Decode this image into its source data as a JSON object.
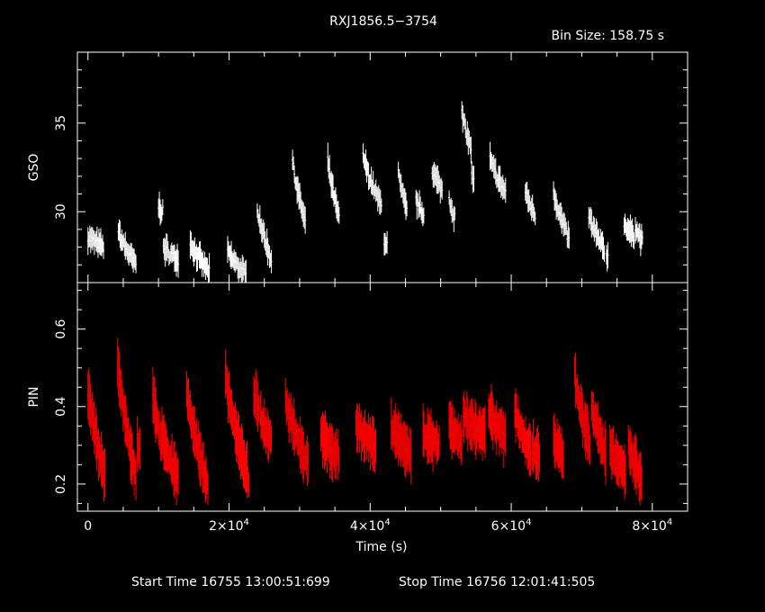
{
  "title": "RXJ1856.5−3754",
  "bin_size": "Bin Size: 158.75 s",
  "footer": {
    "start": "Start Time 16755 13:00:51:699",
    "stop": "Stop Time 16756 12:01:41:505"
  },
  "colors": {
    "background": "#000000",
    "axes": "#ffffff",
    "gso": "#ffffff",
    "pin": "#ff0000"
  },
  "chart_data": [
    {
      "type": "line",
      "panel": "top",
      "ylabel": "GSO",
      "xlim": [
        -1500,
        85000
      ],
      "ylim": [
        26,
        39
      ],
      "yticks": [
        30,
        35
      ],
      "xticks": [
        0,
        20000,
        40000,
        60000,
        80000
      ],
      "xtick_labels": [
        "0",
        "2×10⁴",
        "4×10⁴",
        "6×10⁴",
        "8×10⁴"
      ],
      "segments": [
        {
          "start": 0,
          "end": 2200,
          "y0": 28.6,
          "y1": 28.0
        },
        {
          "start": 4300,
          "end": 6800,
          "y0": 28.9,
          "y1": 27.0
        },
        {
          "start": 10000,
          "end": 10600,
          "y0": 30.3,
          "y1": 30.0
        },
        {
          "start": 10700,
          "end": 12800,
          "y0": 28.0,
          "y1": 27.3
        },
        {
          "start": 14500,
          "end": 17200,
          "y0": 28.3,
          "y1": 26.6
        },
        {
          "start": 19800,
          "end": 22400,
          "y0": 27.8,
          "y1": 26.4
        },
        {
          "start": 24000,
          "end": 26000,
          "y0": 30.3,
          "y1": 27.3
        },
        {
          "start": 29000,
          "end": 30800,
          "y0": 32.9,
          "y1": 29.4
        },
        {
          "start": 34000,
          "end": 35600,
          "y0": 32.9,
          "y1": 29.6
        },
        {
          "start": 39000,
          "end": 41600,
          "y0": 33.2,
          "y1": 30.3
        },
        {
          "start": 42000,
          "end": 42400,
          "y0": 28.4,
          "y1": 28.2
        },
        {
          "start": 44000,
          "end": 45200,
          "y0": 32.2,
          "y1": 30.0
        },
        {
          "start": 46500,
          "end": 47600,
          "y0": 30.7,
          "y1": 29.8
        },
        {
          "start": 48800,
          "end": 50200,
          "y0": 32.4,
          "y1": 31.2
        },
        {
          "start": 51200,
          "end": 52000,
          "y0": 30.8,
          "y1": 29.7
        },
        {
          "start": 53000,
          "end": 54300,
          "y0": 35.6,
          "y1": 33.6
        },
        {
          "start": 54400,
          "end": 54700,
          "y0": 32.0,
          "y1": 31.7
        },
        {
          "start": 57000,
          "end": 58200,
          "y0": 33.0,
          "y1": 31.8
        },
        {
          "start": 58300,
          "end": 59200,
          "y0": 31.8,
          "y1": 31.1
        },
        {
          "start": 62000,
          "end": 63400,
          "y0": 31.2,
          "y1": 29.8
        },
        {
          "start": 66000,
          "end": 68200,
          "y0": 31.2,
          "y1": 28.4
        },
        {
          "start": 71000,
          "end": 73200,
          "y0": 29.8,
          "y1": 27.8
        },
        {
          "start": 73500,
          "end": 73700,
          "y0": 27.6,
          "y1": 27.4
        },
        {
          "start": 76000,
          "end": 77400,
          "y0": 29.4,
          "y1": 28.6
        },
        {
          "start": 77600,
          "end": 78600,
          "y0": 29.2,
          "y1": 28.3
        }
      ]
    },
    {
      "type": "line",
      "panel": "bottom",
      "xlabel": "Time (s)",
      "ylabel": "PIN",
      "xlim": [
        -1500,
        85000
      ],
      "ylim": [
        0.13,
        0.72
      ],
      "yticks": [
        0.2,
        0.4,
        0.6
      ],
      "ytick_labels": [
        "0.2",
        "0.4",
        "0.6"
      ],
      "segments": [
        {
          "start": 0,
          "end": 2400,
          "y0": 0.44,
          "y1": 0.22
        },
        {
          "start": 4200,
          "end": 6800,
          "y0": 0.52,
          "y1": 0.21
        },
        {
          "start": 7000,
          "end": 7400,
          "y0": 0.31,
          "y1": 0.28
        },
        {
          "start": 9200,
          "end": 10400,
          "y0": 0.44,
          "y1": 0.3
        },
        {
          "start": 10500,
          "end": 12800,
          "y0": 0.34,
          "y1": 0.21
        },
        {
          "start": 14000,
          "end": 17000,
          "y0": 0.45,
          "y1": 0.19
        },
        {
          "start": 19500,
          "end": 22800,
          "y0": 0.48,
          "y1": 0.21
        },
        {
          "start": 23500,
          "end": 24200,
          "y0": 0.44,
          "y1": 0.4
        },
        {
          "start": 24400,
          "end": 26000,
          "y0": 0.38,
          "y1": 0.31
        },
        {
          "start": 28000,
          "end": 31200,
          "y0": 0.42,
          "y1": 0.25
        },
        {
          "start": 33000,
          "end": 35600,
          "y0": 0.33,
          "y1": 0.27
        },
        {
          "start": 38000,
          "end": 40800,
          "y0": 0.36,
          "y1": 0.29
        },
        {
          "start": 43000,
          "end": 45800,
          "y0": 0.35,
          "y1": 0.28
        },
        {
          "start": 47500,
          "end": 49800,
          "y0": 0.33,
          "y1": 0.3
        },
        {
          "start": 51200,
          "end": 53000,
          "y0": 0.36,
          "y1": 0.3
        },
        {
          "start": 53200,
          "end": 56300,
          "y0": 0.38,
          "y1": 0.33
        },
        {
          "start": 56800,
          "end": 59200,
          "y0": 0.39,
          "y1": 0.32
        },
        {
          "start": 60500,
          "end": 62800,
          "y0": 0.4,
          "y1": 0.27
        },
        {
          "start": 63000,
          "end": 64000,
          "y0": 0.29,
          "y1": 0.27
        },
        {
          "start": 66000,
          "end": 67400,
          "y0": 0.32,
          "y1": 0.27
        },
        {
          "start": 69000,
          "end": 71200,
          "y0": 0.48,
          "y1": 0.3
        },
        {
          "start": 71400,
          "end": 73400,
          "y0": 0.4,
          "y1": 0.28
        },
        {
          "start": 74000,
          "end": 76200,
          "y0": 0.3,
          "y1": 0.23
        },
        {
          "start": 76600,
          "end": 78500,
          "y0": 0.31,
          "y1": 0.21
        }
      ]
    }
  ]
}
